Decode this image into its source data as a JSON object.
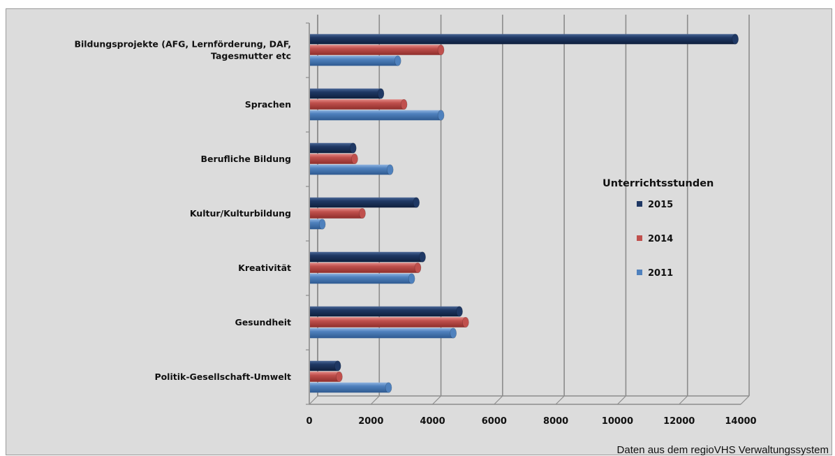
{
  "chart_data": {
    "type": "bar",
    "orientation": "horizontal",
    "xlim": [
      0,
      14000
    ],
    "x_ticks": [
      "0",
      "2000",
      "4000",
      "6000",
      "8000",
      "10000",
      "12000",
      "14000"
    ],
    "categories": [
      [
        "Bildungsprojekte (AFG, Lernförderung, DAF,",
        "Tagesmutter etc"
      ],
      [
        "Sprachen"
      ],
      [
        "Berufliche Bildung"
      ],
      [
        "Kultur/Kulturbildung"
      ],
      [
        "Kreativität"
      ],
      [
        "Gesundheit"
      ],
      [
        "Politik-Gesellschaft-Umwelt"
      ]
    ],
    "legend_title": "Unterrichtsstunden",
    "legend_position": "right",
    "grid": true,
    "series": [
      {
        "name": "2015",
        "color": "#1f3864",
        "values": [
          13800,
          2300,
          1400,
          3450,
          3650,
          4850,
          900
        ]
      },
      {
        "name": "2014",
        "color": "#c0504d",
        "values": [
          4250,
          3050,
          1450,
          1700,
          3500,
          5050,
          950
        ]
      },
      {
        "name": "2011",
        "color": "#4f81bd",
        "values": [
          2850,
          4250,
          2600,
          400,
          3300,
          4650,
          2550
        ]
      }
    ],
    "note": "Daten aus dem regioVHS Verwaltungssystem"
  }
}
